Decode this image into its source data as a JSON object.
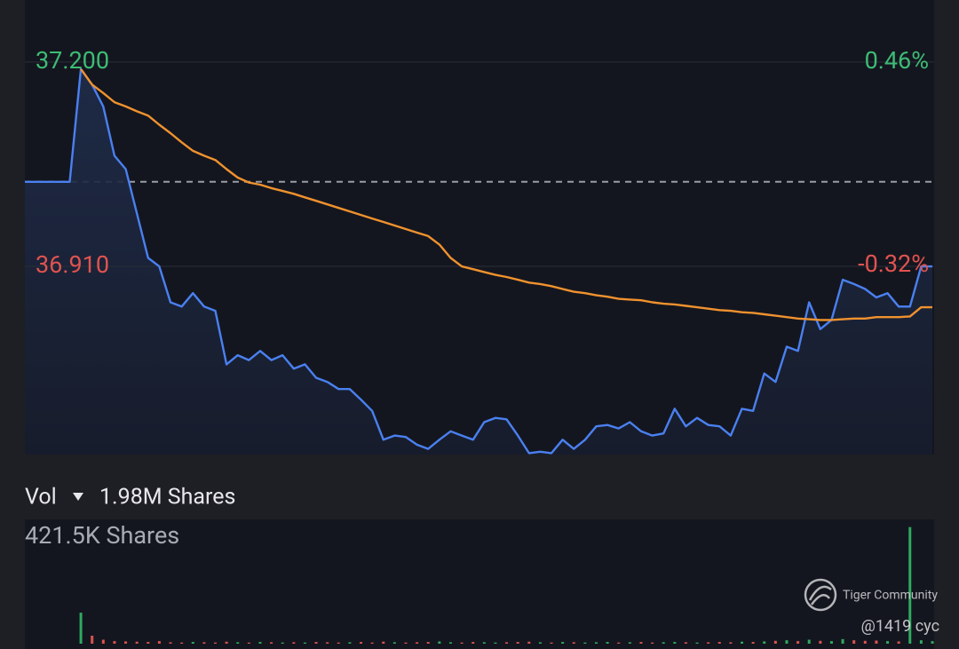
{
  "chart_data": [
    {
      "type": "line",
      "ylim": [
        36.643,
        37.288
      ],
      "yticks": [
        {
          "value": 37.2,
          "label": "37.200"
        },
        {
          "value": 36.91,
          "label": "36.910"
        }
      ],
      "y2lim": [
        -1.045,
        0.697
      ],
      "y2ticks": [
        {
          "value": 0.46,
          "label": "0.46%"
        },
        {
          "value": -0.32,
          "label": "-0.32%"
        }
      ],
      "baseline": 37.03,
      "up_color": "#3dbb74",
      "down_color": "#e0534f",
      "series": [
        {
          "color": "#4a80f0",
          "values": [
            37.03,
            37.03,
            37.03,
            37.03,
            37.03,
            37.19,
            37.168,
            37.137,
            37.067,
            37.048,
            36.985,
            36.922,
            36.91,
            36.859,
            36.853,
            36.872,
            36.853,
            36.847,
            36.771,
            36.784,
            36.777,
            36.79,
            36.777,
            36.784,
            36.765,
            36.771,
            36.752,
            36.746,
            36.736,
            36.736,
            36.721,
            36.705,
            36.664,
            36.67,
            36.668,
            36.657,
            36.651,
            36.664,
            36.676,
            36.67,
            36.664,
            36.689,
            36.695,
            36.693,
            36.67,
            36.645,
            36.647,
            36.645,
            36.664,
            36.651,
            36.664,
            36.683,
            36.685,
            36.68,
            36.689,
            36.676,
            36.67,
            36.673,
            36.708,
            36.683,
            36.695,
            36.685,
            36.683,
            36.67,
            36.708,
            36.705,
            36.758,
            36.746,
            36.796,
            36.79,
            36.859,
            36.821,
            36.834,
            36.891,
            36.885,
            36.878,
            36.866,
            36.872,
            36.853,
            36.853,
            36.91,
            36.91
          ]
        },
        {
          "color": "#f0922e",
          "values": [
            null,
            null,
            null,
            null,
            null,
            37.19,
            37.168,
            37.156,
            37.143,
            37.137,
            37.13,
            37.124,
            37.111,
            37.099,
            37.086,
            37.074,
            37.067,
            37.061,
            37.048,
            37.036,
            37.029,
            37.026,
            37.021,
            37.017,
            37.013,
            37.008,
            37.003,
            36.998,
            36.993,
            36.988,
            36.983,
            36.978,
            36.973,
            36.968,
            36.963,
            36.958,
            36.953,
            36.941,
            36.922,
            36.91,
            36.906,
            36.902,
            36.898,
            36.895,
            36.891,
            36.887,
            36.885,
            36.882,
            36.878,
            36.874,
            36.872,
            36.869,
            36.867,
            36.864,
            36.863,
            36.862,
            36.859,
            36.857,
            36.856,
            36.854,
            36.852,
            36.85,
            36.848,
            36.847,
            36.845,
            36.844,
            36.842,
            36.84,
            36.838,
            36.836,
            36.835,
            36.834,
            36.834,
            36.835,
            36.836,
            36.836,
            36.838,
            36.838,
            36.838,
            36.839,
            36.852,
            36.852
          ]
        }
      ]
    },
    {
      "type": "bar",
      "volume_label": "Vol",
      "volume_total": "1.98M Shares",
      "ylim": [
        0,
        421500
      ],
      "yticks": [
        {
          "value": 421500,
          "label": "421.5K Shares"
        }
      ],
      "up_color": "#2eaa5f",
      "down_color": "#d9534f",
      "values": [
        0,
        0,
        0,
        0,
        0,
        109000,
        28000,
        14000,
        9000,
        8000,
        7000,
        6000,
        9000,
        5000,
        4000,
        6000,
        5000,
        4000,
        7000,
        5000,
        4000,
        6000,
        5000,
        4000,
        5000,
        4000,
        6000,
        5000,
        4000,
        5000,
        6000,
        4000,
        7000,
        5000,
        4000,
        5000,
        6000,
        8000,
        5000,
        4000,
        6000,
        5000,
        4000,
        5000,
        6000,
        7000,
        5000,
        4000,
        6000,
        5000,
        4000,
        5000,
        6000,
        4000,
        5000,
        6000,
        4000,
        5000,
        6000,
        5000,
        4000,
        5000,
        6000,
        5000,
        7000,
        6000,
        8000,
        10000,
        12000,
        9000,
        14000,
        10000,
        9000,
        16000,
        12000,
        10000,
        11000,
        9000,
        8000,
        410000,
        12000,
        9000
      ]
    }
  ],
  "watermark": {
    "brand": "Tiger Community",
    "user": "@1419 cyc"
  }
}
